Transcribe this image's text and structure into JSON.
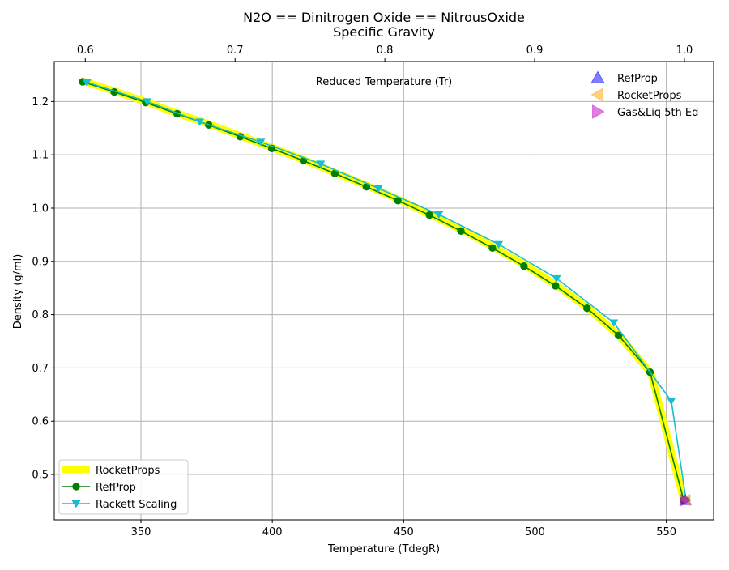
{
  "chart_data": {
    "type": "line",
    "title": "N2O == Dinitrogen Oxide == NitrousOxide",
    "subtitle": "Specific Gravity",
    "xlabel": "Temperature (TdegR)",
    "ylabel": "Density (g/ml)",
    "top_axis_label": "Reduced Temperature (Tr)",
    "xlim": [
      317,
      568
    ],
    "ylim": [
      0.415,
      1.275
    ],
    "top_xlim": [
      0.5793,
      1.0195
    ],
    "grid": true,
    "x_ticks": [
      350,
      400,
      450,
      500,
      550
    ],
    "y_ticks": [
      0.5,
      0.6,
      0.7,
      0.8,
      0.9,
      1.0,
      1.1,
      1.2
    ],
    "top_ticks": [
      0.6,
      0.7,
      0.8,
      0.9,
      1.0
    ],
    "x_tick_labels": [
      "350",
      "400",
      "450",
      "500",
      "550"
    ],
    "y_tick_labels": [
      "0.5",
      "0.6",
      "0.7",
      "0.8",
      "0.9",
      "1.0",
      "1.1",
      "1.2"
    ],
    "top_tick_labels": [
      "0.6",
      "0.7",
      "0.8",
      "0.9",
      "1.0"
    ],
    "series": [
      {
        "name": "RocketProps",
        "color": "#ffff00",
        "style": "thick-line",
        "x": [
          328.2,
          340.2,
          352.2,
          364.2,
          376.2,
          388.2,
          400.2,
          412.2,
          424.2,
          436.2,
          448.2,
          460.2,
          472.2,
          484.2,
          496.2,
          508.2,
          520.2,
          532.2,
          544.2,
          556.6
        ],
        "y": [
          1.238,
          1.219,
          1.199,
          1.177,
          1.157,
          1.135,
          1.113,
          1.09,
          1.066,
          1.042,
          1.016,
          0.988,
          0.959,
          0.927,
          0.893,
          0.855,
          0.812,
          0.76,
          0.69,
          0.452
        ]
      },
      {
        "name": "RefProp",
        "color": "#008000",
        "style": "line-circle",
        "x": [
          327.8,
          339.8,
          351.8,
          363.8,
          375.8,
          387.8,
          399.8,
          411.8,
          423.8,
          435.8,
          447.8,
          459.8,
          471.8,
          483.8,
          495.8,
          507.8,
          519.8,
          531.8,
          543.8,
          556.6
        ],
        "y": [
          1.237,
          1.218,
          1.198,
          1.177,
          1.156,
          1.134,
          1.112,
          1.089,
          1.065,
          1.04,
          1.014,
          0.987,
          0.957,
          0.925,
          0.891,
          0.854,
          0.812,
          0.761,
          0.692,
          0.452
        ]
      },
      {
        "name": "Rackett Scaling",
        "color": "#17becf",
        "style": "line-triangle-down",
        "x": [
          329.4,
          352.4,
          372.4,
          395.6,
          418.4,
          440.4,
          463.4,
          486.2,
          508.2,
          530.0,
          551.9,
          557.5
        ],
        "y": [
          1.236,
          1.2,
          1.162,
          1.124,
          1.083,
          1.037,
          0.988,
          0.932,
          0.868,
          0.785,
          0.638,
          0.452
        ]
      }
    ],
    "critical_points": [
      {
        "name": "RefProp",
        "x": 557.3,
        "y": 0.452,
        "marker": "triangle-up",
        "color": "#0000ff"
      },
      {
        "name": "RocketProps",
        "x": 557.3,
        "y": 0.452,
        "marker": "triangle-left",
        "color": "#ffa500"
      },
      {
        "name": "Gas&Liq 5th Ed",
        "x": 557.3,
        "y": 0.452,
        "marker": "triangle-right",
        "color": "#bf00bf"
      }
    ],
    "legend_upper": {
      "placement": "top-right",
      "entries": [
        "RefProp",
        "RocketProps",
        "Gas&Liq 5th Ed"
      ]
    },
    "legend_lower": {
      "placement": "bottom-left",
      "entries": [
        "RocketProps",
        "RefProp",
        "Rackett Scaling"
      ]
    }
  }
}
